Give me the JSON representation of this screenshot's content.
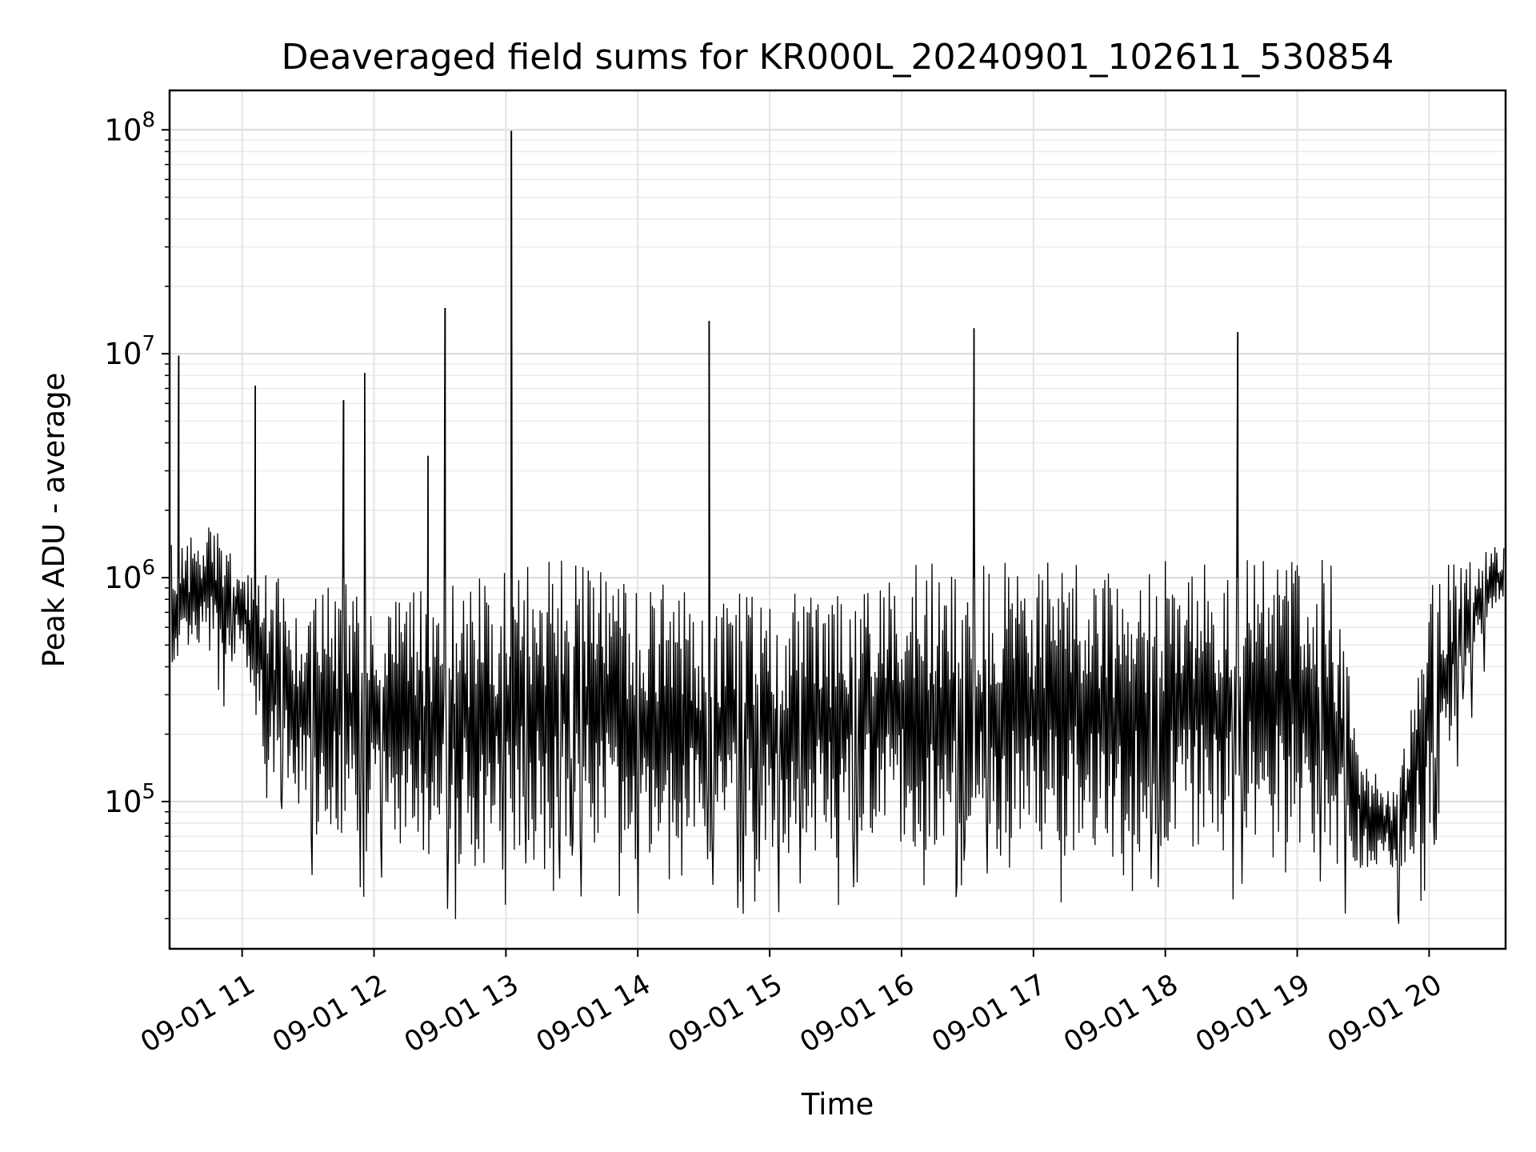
{
  "chart_data": {
    "type": "line",
    "title": "Deaveraged field sums for KR000L_20240901_102611_530854",
    "xlabel": "Time",
    "ylabel": "Peak ADU - average",
    "yscale": "log",
    "ylim": [
      22000,
      150000000
    ],
    "xlim_hours": [
      10.45,
      20.58
    ],
    "grid": true,
    "line_color": "#000000",
    "x_tick_labels": [
      "09-01 11",
      "09-01 12",
      "09-01 13",
      "09-01 14",
      "09-01 15",
      "09-01 16",
      "09-01 17",
      "09-01 18",
      "09-01 19",
      "09-01 20"
    ],
    "x_tick_hours": [
      11,
      12,
      13,
      14,
      15,
      16,
      17,
      18,
      19,
      20
    ],
    "y_ticks": [
      {
        "value": 100000,
        "base": "10",
        "exp": "5"
      },
      {
        "value": 1000000,
        "base": "10",
        "exp": "6"
      },
      {
        "value": 10000000,
        "base": "10",
        "exp": "7"
      },
      {
        "value": 100000000,
        "base": "10",
        "exp": "8"
      }
    ],
    "series": [
      {
        "sampled_envelope": {
          "hours": [
            10.5,
            10.75,
            11.0,
            11.25,
            11.5,
            11.75,
            12.0,
            12.25,
            12.5,
            12.75,
            13.0,
            13.25,
            13.5,
            13.75,
            14.0,
            14.25,
            14.5,
            14.75,
            15.0,
            15.25,
            15.5,
            15.75,
            16.0,
            16.25,
            16.5,
            16.75,
            17.0,
            17.25,
            17.5,
            17.75,
            18.0,
            18.25,
            18.5,
            18.75,
            19.0,
            19.25,
            19.5,
            19.75,
            20.0,
            20.25,
            20.5
          ],
          "low": [
            350000,
            450000,
            450000,
            100000,
            70000,
            70000,
            65000,
            60000,
            55000,
            50000,
            60000,
            60000,
            65000,
            60000,
            55000,
            60000,
            60000,
            55000,
            55000,
            60000,
            55000,
            55000,
            60000,
            60000,
            60000,
            55000,
            60000,
            60000,
            55000,
            55000,
            60000,
            60000,
            60000,
            60000,
            55000,
            55000,
            50000,
            50000,
            50000,
            300000,
            700000
          ],
          "high": [
            1400000,
            1800000,
            1100000,
            1100000,
            900000,
            1000000,
            900000,
            900000,
            900000,
            1000000,
            1100000,
            1200000,
            1200000,
            1100000,
            900000,
            1000000,
            800000,
            900000,
            800000,
            900000,
            900000,
            1100000,
            1100000,
            1200000,
            1100000,
            1200000,
            1200000,
            1200000,
            1100000,
            1100000,
            1200000,
            1200000,
            1200000,
            1200000,
            1200000,
            1200000,
            150000,
            110000,
            1100000,
            1200000,
            1400000
          ]
        },
        "spikes": [
          {
            "hour": 10.52,
            "value": 9800000
          },
          {
            "hour": 11.1,
            "value": 7200000
          },
          {
            "hour": 11.77,
            "value": 6200000
          },
          {
            "hour": 11.93,
            "value": 8200000
          },
          {
            "hour": 12.41,
            "value": 3500000
          },
          {
            "hour": 12.54,
            "value": 16000000
          },
          {
            "hour": 13.04,
            "value": 99000000
          },
          {
            "hour": 14.54,
            "value": 14000000
          },
          {
            "hour": 16.55,
            "value": 13000000
          },
          {
            "hour": 18.55,
            "value": 12500000
          }
        ]
      }
    ]
  }
}
